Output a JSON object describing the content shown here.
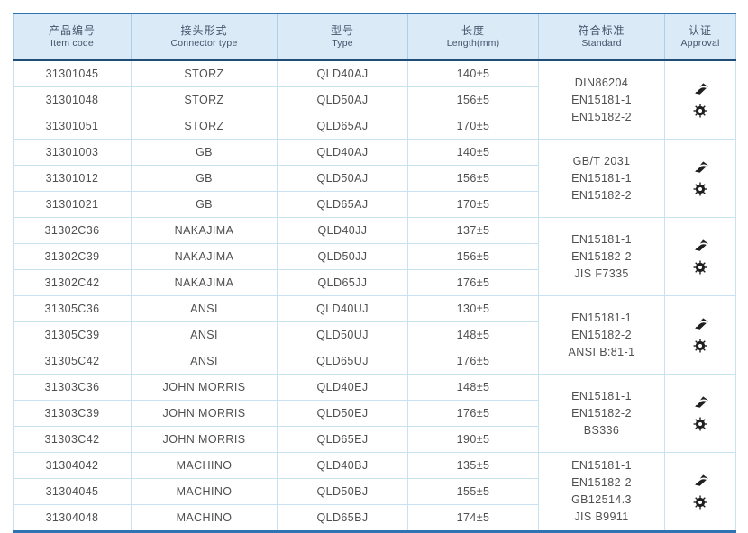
{
  "colors": {
    "table_border": "#2e74b5",
    "header_bg": "#daeaf7",
    "header_rule": "#1f4e79",
    "header_sep": "#aecfe9",
    "grid_line": "#c9e2f2",
    "header_text": "#44546a",
    "body_text": "#4f4f4f",
    "icon": "#1f1f1f"
  },
  "header": {
    "columns": [
      {
        "zh": "产品编号",
        "en": "Item code"
      },
      {
        "zh": "接头形式",
        "en": "Connector type"
      },
      {
        "zh": "型号",
        "en": "Type"
      },
      {
        "zh": "长度",
        "en": "Length(mm)"
      },
      {
        "zh": "符合标准",
        "en": "Standard"
      },
      {
        "zh": "认证",
        "en": "Approval"
      }
    ]
  },
  "approval_icons": [
    "certification-logo-icon",
    "wheelmark-icon"
  ],
  "groups": [
    {
      "rows": [
        {
          "item_code": "31301045",
          "connector_type": "STORZ",
          "type": "QLD40AJ",
          "length": "140±5"
        },
        {
          "item_code": "31301048",
          "connector_type": "STORZ",
          "type": "QLD50AJ",
          "length": "156±5"
        },
        {
          "item_code": "31301051",
          "connector_type": "STORZ",
          "type": "QLD65AJ",
          "length": "170±5"
        }
      ],
      "standards": [
        "DIN86204",
        "EN15181-1",
        "EN15182-2"
      ]
    },
    {
      "rows": [
        {
          "item_code": "31301003",
          "connector_type": "GB",
          "type": "QLD40AJ",
          "length": "140±5"
        },
        {
          "item_code": "31301012",
          "connector_type": "GB",
          "type": "QLD50AJ",
          "length": "156±5"
        },
        {
          "item_code": "31301021",
          "connector_type": "GB",
          "type": "QLD65AJ",
          "length": "170±5"
        }
      ],
      "standards": [
        "GB/T 2031",
        "EN15181-1",
        "EN15182-2"
      ]
    },
    {
      "rows": [
        {
          "item_code": "31302C36",
          "connector_type": "NAKAJIMA",
          "type": "QLD40JJ",
          "length": "137±5"
        },
        {
          "item_code": "31302C39",
          "connector_type": "NAKAJIMA",
          "type": "QLD50JJ",
          "length": "156±5"
        },
        {
          "item_code": "31302C42",
          "connector_type": "NAKAJIMA",
          "type": "QLD65JJ",
          "length": "176±5"
        }
      ],
      "standards": [
        "EN15181-1",
        "EN15182-2",
        "JIS F7335"
      ]
    },
    {
      "rows": [
        {
          "item_code": "31305C36",
          "connector_type": "ANSI",
          "type": "QLD40UJ",
          "length": "130±5"
        },
        {
          "item_code": "31305C39",
          "connector_type": "ANSI",
          "type": "QLD50UJ",
          "length": "148±5"
        },
        {
          "item_code": "31305C42",
          "connector_type": "ANSI",
          "type": "QLD65UJ",
          "length": "176±5"
        }
      ],
      "standards": [
        "EN15181-1",
        "EN15182-2",
        "ANSI B:81-1"
      ]
    },
    {
      "rows": [
        {
          "item_code": "31303C36",
          "connector_type": "JOHN MORRIS",
          "type": "QLD40EJ",
          "length": "148±5"
        },
        {
          "item_code": "31303C39",
          "connector_type": "JOHN MORRIS",
          "type": "QLD50EJ",
          "length": "176±5"
        },
        {
          "item_code": "31303C42",
          "connector_type": "JOHN MORRIS",
          "type": "QLD65EJ",
          "length": "190±5"
        }
      ],
      "standards": [
        "EN15181-1",
        "EN15182-2",
        "BS336"
      ]
    },
    {
      "rows": [
        {
          "item_code": "31304042",
          "connector_type": "MACHINO",
          "type": "QLD40BJ",
          "length": "135±5"
        },
        {
          "item_code": "31304045",
          "connector_type": "MACHINO",
          "type": "QLD50BJ",
          "length": "155±5"
        },
        {
          "item_code": "31304048",
          "connector_type": "MACHINO",
          "type": "QLD65BJ",
          "length": "174±5"
        }
      ],
      "standards": [
        "EN15181-1",
        "EN15182-2",
        "GB12514.3",
        "JIS B9911"
      ]
    }
  ]
}
